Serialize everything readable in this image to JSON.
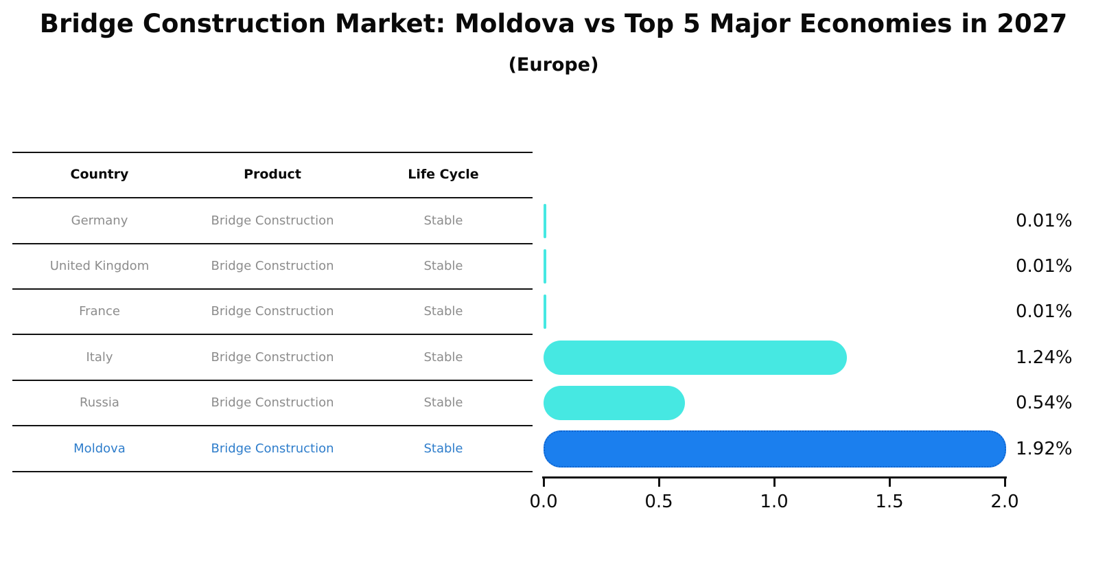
{
  "title": "Bridge Construction Market: Moldova vs Top 5 Major Economies in 2027",
  "subtitle": "(Europe)",
  "table": {
    "headers": [
      "Country",
      "Product",
      "Life Cycle"
    ],
    "rows": [
      {
        "country": "Germany",
        "product": "Bridge Construction",
        "life_cycle": "Stable",
        "highlight": false
      },
      {
        "country": "United Kingdom",
        "product": "Bridge Construction",
        "life_cycle": "Stable",
        "highlight": false
      },
      {
        "country": "France",
        "product": "Bridge Construction",
        "life_cycle": "Stable",
        "highlight": false
      },
      {
        "country": "Italy",
        "product": "Bridge Construction",
        "life_cycle": "Stable",
        "highlight": false
      },
      {
        "country": "Russia",
        "product": "Bridge Construction",
        "life_cycle": "Stable",
        "highlight": false
      },
      {
        "country": "Moldova",
        "product": "Bridge Construction",
        "life_cycle": "Stable",
        "highlight": true
      }
    ]
  },
  "chart_data": {
    "type": "bar",
    "orientation": "horizontal",
    "title": "Bridge Construction Market: Moldova vs Top 5 Major Economies in 2027",
    "subtitle": "(Europe)",
    "categories": [
      "Germany",
      "United Kingdom",
      "France",
      "Italy",
      "Russia",
      "Moldova"
    ],
    "values": [
      0.01,
      0.01,
      0.01,
      1.24,
      0.54,
      1.92
    ],
    "value_labels": [
      "0.01%",
      "0.01%",
      "0.01%",
      "1.24%",
      "0.54%",
      "1.92%"
    ],
    "xlabel": "",
    "ylabel": "",
    "xlim": [
      0.0,
      2.0
    ],
    "x_ticks": [
      "0.0",
      "0.5",
      "1.0",
      "1.5",
      "2.0"
    ],
    "grid": false,
    "legend": false,
    "highlight_index": 5,
    "bar_color": "#46e8e2",
    "highlight_color": "#1b7fee",
    "highlight_border_color": "#1063cc"
  },
  "colors": {
    "row_text": "#8c8c8c",
    "highlight_text": "#2e7dcb",
    "axis": "#111111",
    "title_text": "#0a0a0a"
  }
}
